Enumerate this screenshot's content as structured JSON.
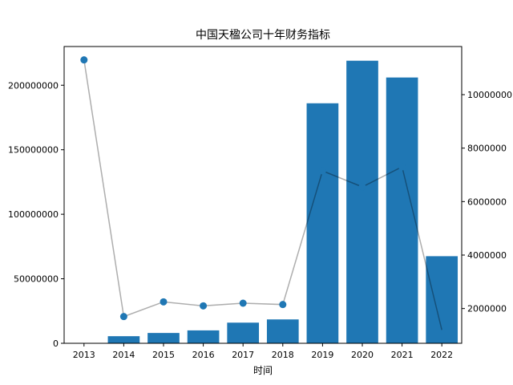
{
  "chart_data": {
    "type": "bar",
    "title": "中国天楹公司十年财务指标",
    "xlabel": "时间",
    "ylabel": "",
    "categories": [
      "2013",
      "2014",
      "2015",
      "2016",
      "2017",
      "2018",
      "2019",
      "2020",
      "2021",
      "2022"
    ],
    "series": [
      {
        "axis": "left",
        "type": "bar",
        "color": "#1f77b4",
        "values": [
          0,
          5500000,
          8000000,
          10000000,
          16000000,
          18500000,
          186000000,
          219000000,
          206000000,
          67500000
        ]
      },
      {
        "axis": "right",
        "type": "line",
        "color": "#1f77b4",
        "line_color": "#aaaaaa",
        "values": [
          11300000,
          1700000,
          2250000,
          2100000,
          2200000,
          2150000,
          7150000,
          6550000,
          7300000,
          1200000
        ]
      }
    ],
    "y_left": {
      "ylim": [
        0,
        230000000
      ],
      "ticks": [
        0,
        50000000,
        100000000,
        150000000,
        200000000
      ]
    },
    "y_right": {
      "ylim": [
        700000,
        11800000
      ],
      "ticks": [
        2000000,
        4000000,
        6000000,
        8000000,
        10000000
      ]
    },
    "grid": false,
    "legend": "none"
  }
}
